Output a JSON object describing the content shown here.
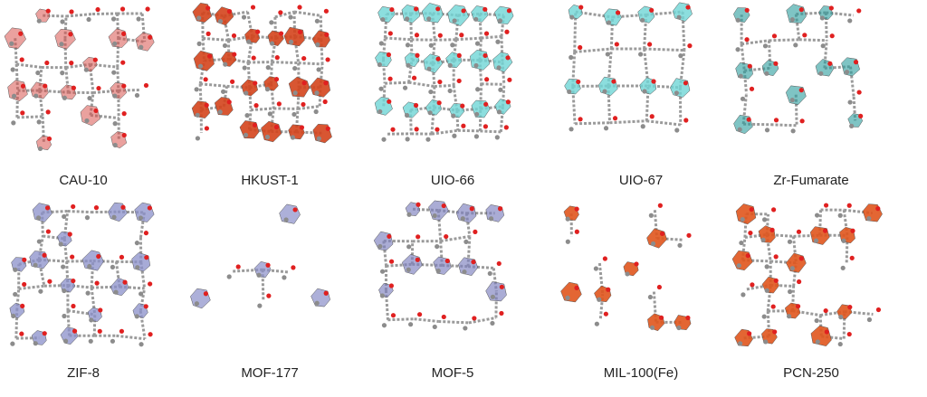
{
  "panels": [
    {
      "label": "CAU-10"
    },
    {
      "label": "HKUST-1"
    },
    {
      "label": "UIO-66"
    },
    {
      "label": "UIO-67"
    },
    {
      "label": "Zr-Fumarate"
    },
    {
      "label": "ZIF-8"
    },
    {
      "label": "MOF-177"
    },
    {
      "label": "MOF-5"
    },
    {
      "label": "MIL-100(Fe)"
    },
    {
      "label": "PCN-250"
    }
  ]
}
